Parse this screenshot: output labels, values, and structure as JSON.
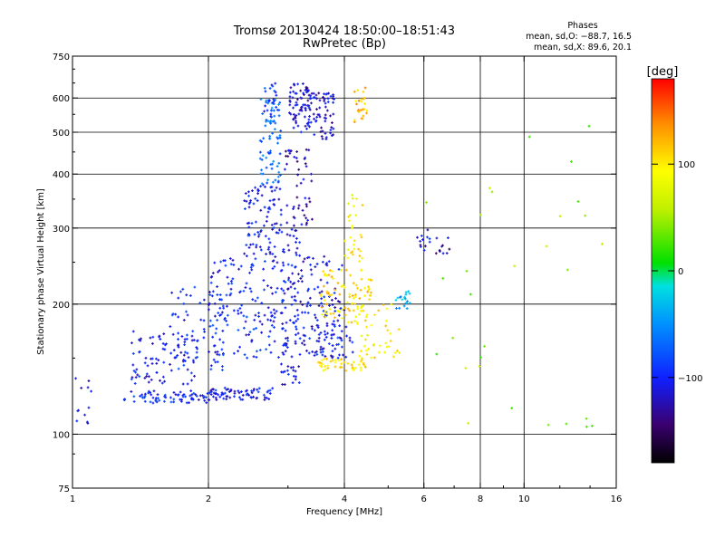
{
  "chart_data": {
    "type": "scatter",
    "title": "Tromsø 20130424 18:50:00–18:51:43",
    "subtitle": "RwPretec (Bp)",
    "xlabel": "Frequency [MHz]",
    "ylabel": "Stationary phase Virtual Height [km]",
    "xscale": "log",
    "yscale": "log",
    "xlim": [
      1,
      16
    ],
    "ylim": [
      75,
      750
    ],
    "xticks": [
      "1",
      "2",
      "4",
      "6",
      "8",
      "10",
      "16"
    ],
    "xtick_values": [
      1,
      2,
      4,
      6,
      8,
      10,
      16
    ],
    "yticks": [
      "75",
      "100",
      "200",
      "300",
      "400",
      "500",
      "600",
      "750"
    ],
    "ytick_values": [
      75,
      100,
      200,
      300,
      400,
      500,
      600,
      750
    ],
    "grid": true,
    "grid_x": [
      2,
      4,
      6,
      8,
      10
    ],
    "grid_y": [
      100,
      200,
      300,
      400,
      500,
      600
    ],
    "stats": {
      "heading": "Phases",
      "line_o": "mean, sd,O: −88.7, 16.5",
      "line_x": "mean, sd,X:  89.6, 20.1"
    },
    "colorbar": {
      "label": "[deg]",
      "range": [
        -180,
        180
      ],
      "ticks": [
        "100",
        "0",
        "−100"
      ],
      "tick_values": [
        100,
        0,
        -100
      ]
    },
    "colors": {
      "O_mode": "#1a3ae0",
      "X_mode": "#e8e020",
      "cyan": "#00c0ff"
    },
    "point_clusters": [
      {
        "x": [
          1.0,
          1.1
        ],
        "y": [
          100,
          140
        ],
        "phase": -110,
        "n": 12
      },
      {
        "x": [
          1.3,
          2.0
        ],
        "y": [
          118,
          126
        ],
        "phase": -100,
        "n": 70
      },
      {
        "x": [
          1.35,
          1.9
        ],
        "y": [
          130,
          175
        ],
        "phase": -105,
        "n": 90
      },
      {
        "x": [
          1.6,
          2.2
        ],
        "y": [
          140,
          220
        ],
        "phase": -100,
        "n": 60
      },
      {
        "x": [
          2.0,
          2.8
        ],
        "y": [
          120,
          128
        ],
        "phase": -105,
        "n": 70
      },
      {
        "x": [
          2.0,
          3.0
        ],
        "y": [
          150,
          260
        ],
        "phase": -100,
        "n": 160
      },
      {
        "x": [
          2.4,
          2.9
        ],
        "y": [
          260,
          380
        ],
        "phase": -105,
        "n": 90
      },
      {
        "x": [
          2.6,
          2.9
        ],
        "y": [
          380,
          600
        ],
        "phase": -65,
        "n": 70
      },
      {
        "x": [
          2.65,
          2.85
        ],
        "y": [
          540,
          650
        ],
        "phase": -90,
        "n": 25
      },
      {
        "x": [
          2.9,
          3.2
        ],
        "y": [
          130,
          300
        ],
        "phase": -110,
        "n": 90
      },
      {
        "x": [
          2.95,
          3.4
        ],
        "y": [
          300,
          460
        ],
        "phase": -125,
        "n": 50
      },
      {
        "x": [
          3.0,
          3.35
        ],
        "y": [
          500,
          650
        ],
        "phase": -115,
        "n": 70
      },
      {
        "x": [
          3.3,
          3.8
        ],
        "y": [
          480,
          620
        ],
        "phase": -115,
        "n": 70
      },
      {
        "x": [
          3.1,
          4.2
        ],
        "y": [
          150,
          180
        ],
        "phase": -105,
        "n": 80
      },
      {
        "x": [
          3.2,
          4.0
        ],
        "y": [
          180,
          260
        ],
        "phase": -110,
        "n": 70
      },
      {
        "x": [
          3.5,
          4.5
        ],
        "y": [
          140,
          150
        ],
        "phase": 100,
        "n": 45
      },
      {
        "x": [
          3.5,
          4.6
        ],
        "y": [
          180,
          240
        ],
        "phase": 105,
        "n": 90
      },
      {
        "x": [
          4.0,
          4.4
        ],
        "y": [
          250,
          360
        ],
        "phase": 95,
        "n": 30
      },
      {
        "x": [
          4.2,
          4.5
        ],
        "y": [
          520,
          640
        ],
        "phase": 120,
        "n": 25
      },
      {
        "x": [
          4.3,
          5.3
        ],
        "y": [
          150,
          200
        ],
        "phase": 100,
        "n": 40
      },
      {
        "x": [
          5.2,
          5.6
        ],
        "y": [
          195,
          215
        ],
        "phase": -40,
        "n": 20
      },
      {
        "x": [
          5.8,
          6.2
        ],
        "y": [
          260,
          300
        ],
        "phase": -110,
        "n": 12
      },
      {
        "x": [
          6.3,
          7.0
        ],
        "y": [
          260,
          290
        ],
        "phase": -130,
        "n": 10
      },
      {
        "x": [
          6.0,
          15.0
        ],
        "y": [
          100,
          600
        ],
        "phase": 40,
        "n": 30
      }
    ]
  }
}
